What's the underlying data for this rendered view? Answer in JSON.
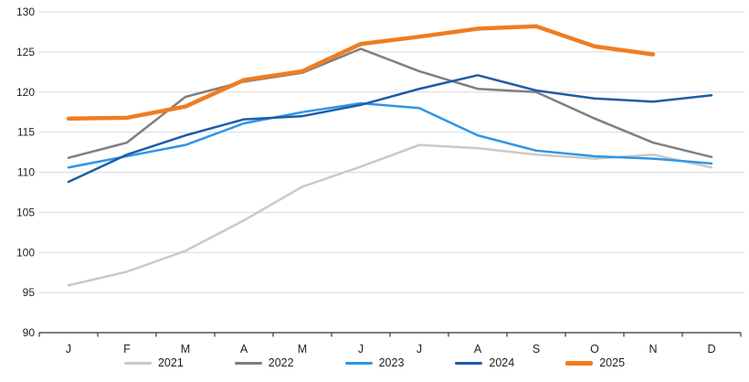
{
  "chart_data": {
    "type": "line",
    "title": "",
    "xlabel": "",
    "ylabel": "",
    "categories": [
      "J",
      "F",
      "M",
      "A",
      "M",
      "J",
      "J",
      "A",
      "S",
      "O",
      "N",
      "D"
    ],
    "series": [
      {
        "name": "2021",
        "color": "#c9c9c9",
        "stroke_width": 2.5,
        "values": [
          95.9,
          97.6,
          100.2,
          104.0,
          108.2,
          110.7,
          113.4,
          113.0,
          112.2,
          111.7,
          112.2,
          110.6
        ]
      },
      {
        "name": "2022",
        "color": "#7f7f7f",
        "stroke_width": 2.5,
        "values": [
          111.8,
          113.7,
          119.4,
          121.3,
          122.4,
          125.4,
          122.6,
          120.4,
          120.0,
          116.7,
          113.7,
          111.9
        ]
      },
      {
        "name": "2023",
        "color": "#2d96e8",
        "stroke_width": 2.5,
        "values": [
          110.6,
          112.0,
          113.4,
          116.1,
          117.5,
          118.6,
          118.0,
          114.6,
          112.7,
          112.0,
          111.7,
          111.1
        ]
      },
      {
        "name": "2024",
        "color": "#1f5ca9",
        "stroke_width": 2.5,
        "values": [
          108.8,
          112.2,
          114.6,
          116.6,
          117.0,
          118.4,
          120.4,
          122.1,
          120.2,
          119.2,
          118.8,
          119.6
        ]
      },
      {
        "name": "2025",
        "color": "#ee7d23",
        "stroke_width": 4.5,
        "values": [
          116.7,
          116.8,
          118.2,
          121.5,
          122.6,
          126.0,
          126.9,
          127.9,
          128.2,
          125.7,
          124.7,
          null
        ]
      }
    ],
    "ylim": [
      90,
      130
    ],
    "ytick_step": 5,
    "y_tick_labels": [
      "90",
      "95",
      "100",
      "105",
      "110",
      "115",
      "120",
      "125",
      "130"
    ],
    "grid": "horizontal",
    "gridline_color": "#d9d9d9",
    "axis_color": "#333333",
    "legend_position": "bottom",
    "legend_entries": [
      "2021",
      "2022",
      "2023",
      "2024",
      "2025"
    ]
  }
}
